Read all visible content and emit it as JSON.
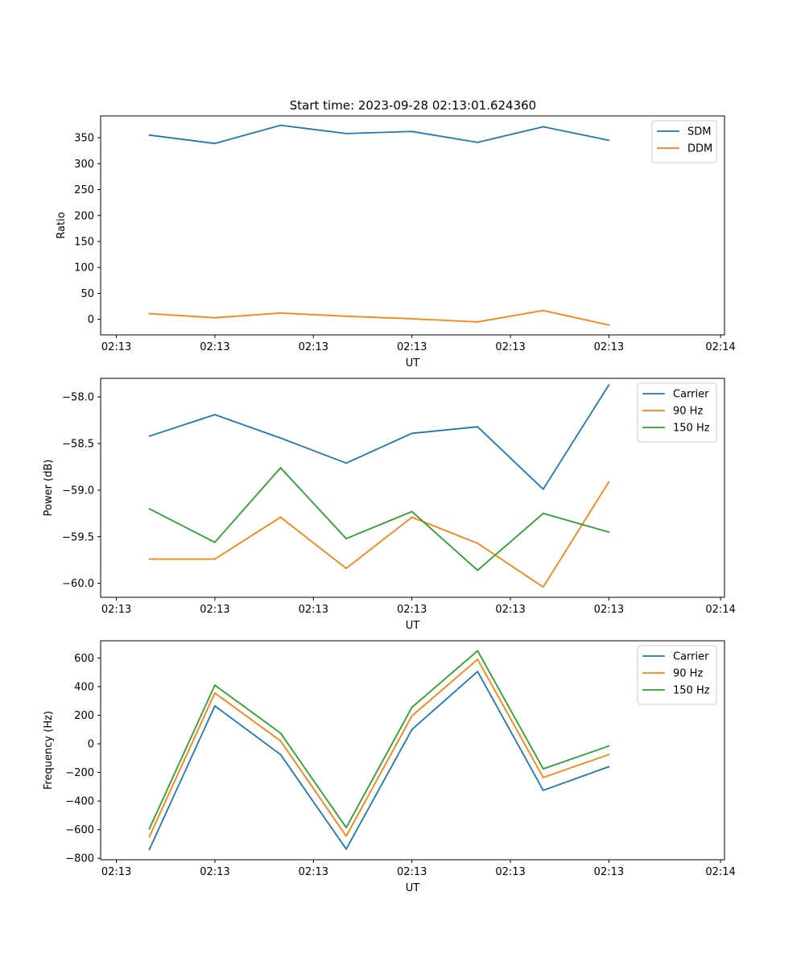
{
  "figure_title": "Start time: 2023-09-28 02:13:01.624360",
  "chart_data": [
    {
      "type": "line",
      "xlabel": "UT",
      "ylabel": "Ratio",
      "x": [
        0,
        1,
        2,
        3,
        4,
        5,
        6,
        7
      ],
      "x_ticks": [
        -0.5,
        1.0,
        2.5,
        4.0,
        5.5,
        7.0,
        8.7
      ],
      "x_tick_labels": [
        "02:13",
        "02:13",
        "02:13",
        "02:13",
        "02:13",
        "02:13",
        "02:14"
      ],
      "xlim": [
        -0.74,
        8.76
      ],
      "ylim": [
        -30,
        392
      ],
      "y_ticks": [
        0,
        50,
        100,
        150,
        200,
        250,
        300,
        350
      ],
      "y_tick_labels": [
        "0",
        "50",
        "100",
        "150",
        "200",
        "250",
        "300",
        "350"
      ],
      "legend_position": "top-right",
      "series": [
        {
          "name": "SDM",
          "color": "#1f77b4",
          "values": [
            355,
            339,
            374,
            358,
            362,
            341,
            371,
            345
          ]
        },
        {
          "name": "DDM",
          "color": "#ff7f0e",
          "values": [
            11,
            3,
            12,
            6,
            1,
            -5,
            17,
            -11
          ]
        }
      ]
    },
    {
      "type": "line",
      "xlabel": "UT",
      "ylabel": "Power (dB)",
      "x": [
        0,
        1,
        2,
        3,
        4,
        5,
        6,
        7
      ],
      "x_ticks": [
        -0.5,
        1.0,
        2.5,
        4.0,
        5.5,
        7.0,
        8.7
      ],
      "x_tick_labels": [
        "02:13",
        "02:13",
        "02:13",
        "02:13",
        "02:13",
        "02:13",
        "02:14"
      ],
      "xlim": [
        -0.74,
        8.76
      ],
      "ylim": [
        -60.15,
        -57.8
      ],
      "y_ticks": [
        -60.0,
        -59.5,
        -59.0,
        -58.5,
        -58.0
      ],
      "y_tick_labels": [
        "−60.0",
        "−59.5",
        "−59.0",
        "−58.5",
        "−58.0"
      ],
      "legend_position": "top-right",
      "series": [
        {
          "name": "Carrier",
          "color": "#1f77b4",
          "values": [
            -58.42,
            -58.19,
            -58.44,
            -58.71,
            -58.39,
            -58.32,
            -58.99,
            -57.87
          ]
        },
        {
          "name": "90 Hz",
          "color": "#ff7f0e",
          "values": [
            -59.74,
            -59.74,
            -59.29,
            -59.84,
            -59.29,
            -59.57,
            -60.04,
            -58.91
          ]
        },
        {
          "name": "150 Hz",
          "color": "#2ca02c",
          "values": [
            -59.2,
            -59.56,
            -58.76,
            -59.52,
            -59.23,
            -59.86,
            -59.25,
            -59.45
          ]
        }
      ]
    },
    {
      "type": "line",
      "xlabel": "UT",
      "ylabel": "Frequency (Hz)",
      "x": [
        0,
        1,
        2,
        3,
        4,
        5,
        6,
        7
      ],
      "x_ticks": [
        -0.5,
        1.0,
        2.5,
        4.0,
        5.5,
        7.0,
        8.7
      ],
      "x_tick_labels": [
        "02:13",
        "02:13",
        "02:13",
        "02:13",
        "02:13",
        "02:13",
        "02:14"
      ],
      "xlim": [
        -0.74,
        8.76
      ],
      "ylim": [
        -810,
        720
      ],
      "y_ticks": [
        -800,
        -600,
        -400,
        -200,
        0,
        200,
        400,
        600
      ],
      "y_tick_labels": [
        "−800",
        "−600",
        "−400",
        "−200",
        "0",
        "200",
        "400",
        "600"
      ],
      "legend_position": "top-right",
      "series": [
        {
          "name": "Carrier",
          "color": "#1f77b4",
          "values": [
            -740,
            265,
            -75,
            -735,
            100,
            505,
            -325,
            -160
          ]
        },
        {
          "name": "90 Hz",
          "color": "#ff7f0e",
          "values": [
            -650,
            355,
            20,
            -645,
            195,
            590,
            -235,
            -75
          ]
        },
        {
          "name": "150 Hz",
          "color": "#2ca02c",
          "values": [
            -595,
            410,
            75,
            -585,
            255,
            650,
            -175,
            -15
          ]
        }
      ]
    }
  ]
}
